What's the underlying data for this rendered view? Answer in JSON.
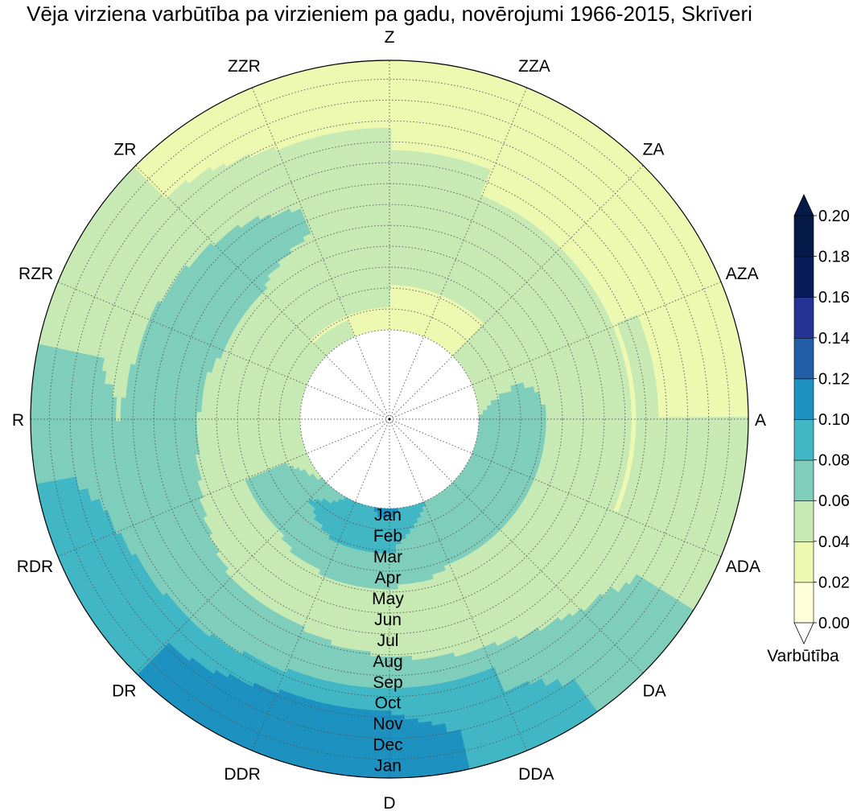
{
  "chart_data": {
    "type": "polar-contour",
    "title": "Vēja virziena varbūtība pa virzieniem pa gadu, novērojumi 1966-2015, Skrīveri",
    "directions": [
      "Z",
      "ZZA",
      "ZA",
      "AZA",
      "A",
      "ADA",
      "DA",
      "DDA",
      "D",
      "DDR",
      "DR",
      "RDR",
      "R",
      "RZR",
      "ZR",
      "ZZR"
    ],
    "radial_labels": [
      "Jan",
      "Feb",
      "Mar",
      "Apr",
      "May",
      "Jun",
      "Jul",
      "Aug",
      "Sep",
      "Oct",
      "Nov",
      "Dec",
      "Jan"
    ],
    "colorbar": {
      "label": "Varbūtība",
      "ticks": [
        "0.00",
        "0.02",
        "0.04",
        "0.06",
        "0.08",
        "0.10",
        "0.12",
        "0.14",
        "0.16",
        "0.18",
        "0.20"
      ],
      "levels": [
        0.0,
        0.02,
        0.04,
        0.06,
        0.08,
        0.1,
        0.12,
        0.14,
        0.16,
        0.18,
        0.2
      ],
      "colors": [
        "#ffffd9",
        "#edf8b1",
        "#c7e9b4",
        "#7fcdbb",
        "#41b6c4",
        "#1d91c0",
        "#225ea8",
        "#253494",
        "#081d58",
        "#061a4a"
      ],
      "extend": "both"
    },
    "probability_by_month_direction": {
      "rows": "Jan..Dec (inner to outer)",
      "cols": "Z, ZZA, ZA, AZA, A, ADA, DA, DDA, D, DDR, DR, RDR, R, RZR, ZR, ZZR",
      "values": [
        [
          0.03,
          0.03,
          0.04,
          0.05,
          0.06,
          0.06,
          0.07,
          0.08,
          0.11,
          0.09,
          0.06,
          0.05,
          0.04,
          0.04,
          0.04,
          0.04
        ],
        [
          0.04,
          0.03,
          0.04,
          0.05,
          0.07,
          0.08,
          0.07,
          0.07,
          0.09,
          0.1,
          0.08,
          0.06,
          0.05,
          0.05,
          0.04,
          0.04
        ],
        [
          0.04,
          0.04,
          0.04,
          0.05,
          0.08,
          0.07,
          0.06,
          0.06,
          0.08,
          0.08,
          0.07,
          0.06,
          0.05,
          0.05,
          0.04,
          0.04
        ],
        [
          0.04,
          0.04,
          0.04,
          0.05,
          0.06,
          0.06,
          0.06,
          0.06,
          0.07,
          0.07,
          0.06,
          0.06,
          0.05,
          0.05,
          0.05,
          0.04
        ],
        [
          0.05,
          0.04,
          0.04,
          0.05,
          0.05,
          0.05,
          0.05,
          0.05,
          0.05,
          0.05,
          0.05,
          0.05,
          0.05,
          0.06,
          0.06,
          0.05
        ],
        [
          0.06,
          0.04,
          0.04,
          0.04,
          0.04,
          0.04,
          0.04,
          0.04,
          0.05,
          0.05,
          0.05,
          0.06,
          0.07,
          0.07,
          0.07,
          0.06
        ],
        [
          0.05,
          0.04,
          0.04,
          0.04,
          0.04,
          0.04,
          0.04,
          0.04,
          0.05,
          0.06,
          0.06,
          0.07,
          0.07,
          0.07,
          0.08,
          0.06
        ],
        [
          0.05,
          0.04,
          0.04,
          0.04,
          0.04,
          0.04,
          0.05,
          0.06,
          0.07,
          0.07,
          0.07,
          0.07,
          0.07,
          0.07,
          0.06,
          0.05
        ],
        [
          0.04,
          0.04,
          0.03,
          0.04,
          0.04,
          0.05,
          0.06,
          0.08,
          0.08,
          0.08,
          0.07,
          0.07,
          0.06,
          0.05,
          0.05,
          0.04
        ],
        [
          0.04,
          0.03,
          0.03,
          0.03,
          0.04,
          0.05,
          0.07,
          0.08,
          0.1,
          0.1,
          0.09,
          0.08,
          0.07,
          0.05,
          0.05,
          0.04
        ],
        [
          0.03,
          0.02,
          0.02,
          0.03,
          0.04,
          0.05,
          0.07,
          0.09,
          0.11,
          0.11,
          0.1,
          0.09,
          0.07,
          0.05,
          0.04,
          0.03
        ],
        [
          0.03,
          0.02,
          0.02,
          0.03,
          0.04,
          0.05,
          0.07,
          0.09,
          0.11,
          0.11,
          0.1,
          0.09,
          0.07,
          0.05,
          0.04,
          0.03
        ]
      ]
    }
  }
}
